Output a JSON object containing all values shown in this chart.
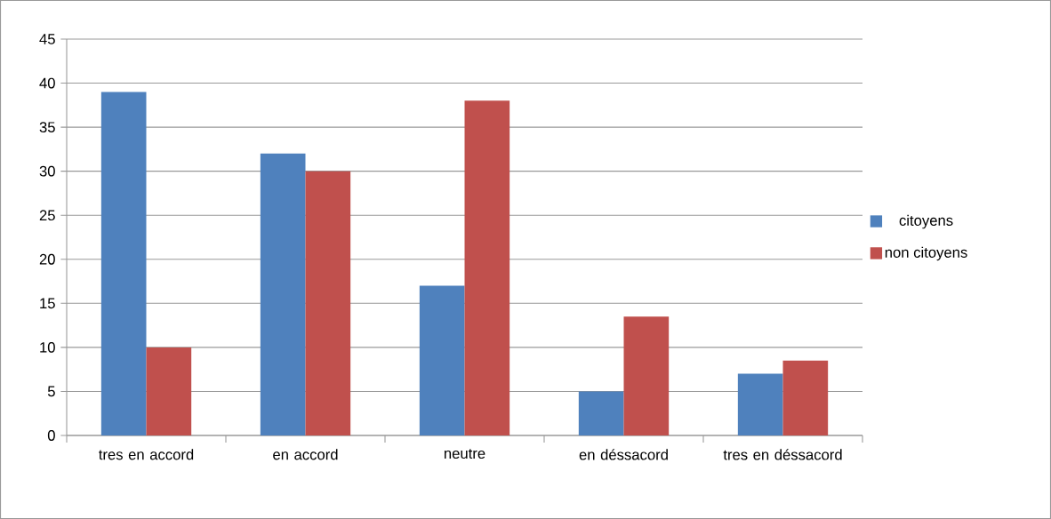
{
  "chart_data": {
    "type": "bar",
    "categories": [
      "tres en accord",
      "en accord",
      "neutre",
      "en déssacord",
      "tres en déssacord"
    ],
    "series": [
      {
        "name": "citoyens",
        "color": "#4f81bd",
        "values": [
          39,
          32,
          17,
          5,
          7
        ]
      },
      {
        "name": "non citoyens",
        "color": "#c0504d",
        "values": [
          10,
          30,
          38,
          13.5,
          8.5
        ]
      }
    ],
    "ylim": [
      0,
      45
    ],
    "yticks": [
      0,
      5,
      10,
      15,
      20,
      25,
      30,
      35,
      40,
      45
    ],
    "grid": "y",
    "legend": "right"
  }
}
